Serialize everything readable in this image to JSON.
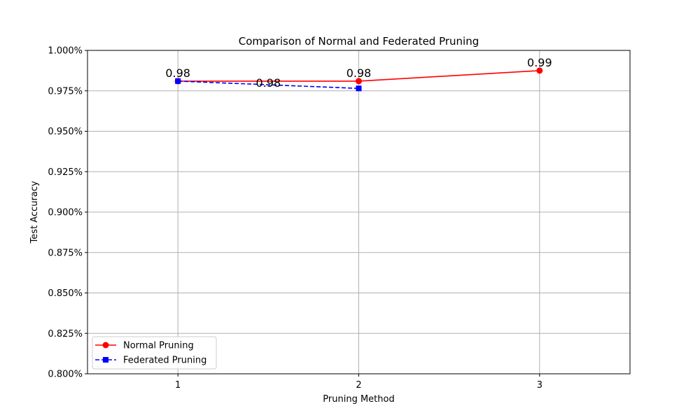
{
  "chart_data": {
    "type": "line",
    "title": "Comparison of Normal and Federated Pruning",
    "xlabel": "Pruning Method",
    "ylabel": "Test Accuracy",
    "xlim": [
      0.5,
      3.5
    ],
    "ylim": [
      0.8,
      1.0
    ],
    "x_ticks": [
      1,
      2,
      3
    ],
    "x_tick_labels": [
      "1",
      "2",
      "3"
    ],
    "y_ticks": [
      0.8,
      0.825,
      0.85,
      0.875,
      0.9,
      0.925,
      0.95,
      0.975,
      1.0
    ],
    "y_tick_labels": [
      "0.800%",
      "0.825%",
      "0.850%",
      "0.875%",
      "0.900%",
      "0.925%",
      "0.950%",
      "0.975%",
      "1.000%"
    ],
    "grid": true,
    "legend_position": "lower-left",
    "series": [
      {
        "name": "Normal Pruning",
        "color": "#ff0000",
        "marker": "circle",
        "line_style": "solid",
        "x": [
          1,
          2,
          3
        ],
        "y": [
          0.981,
          0.981,
          0.9875
        ],
        "labels": [
          "0.98",
          "0.98",
          "0.99"
        ]
      },
      {
        "name": "Federated Pruning",
        "color": "#0000ff",
        "marker": "square",
        "line_style": "dashed",
        "x": [
          1,
          2
        ],
        "y": [
          0.981,
          0.9765
        ],
        "labels": [
          "0.98"
        ]
      }
    ]
  }
}
